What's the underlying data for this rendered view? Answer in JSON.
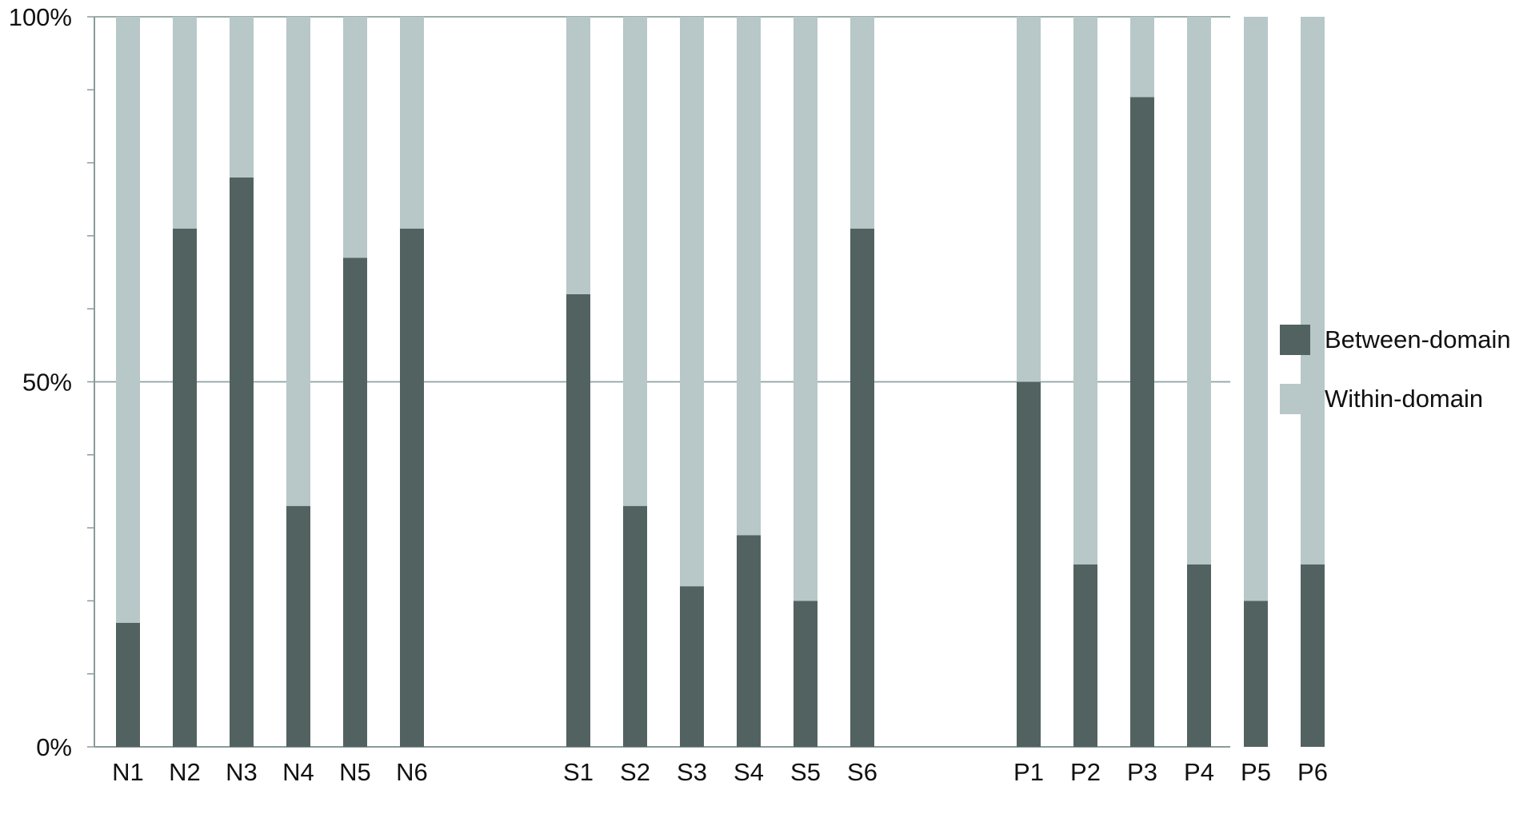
{
  "chart_data": {
    "type": "bar",
    "stacked": true,
    "percent": true,
    "categories": [
      "N1",
      "N2",
      "N3",
      "N4",
      "N5",
      "N6",
      "S1",
      "S2",
      "S3",
      "S4",
      "S5",
      "S6",
      "P1",
      "P2",
      "P3",
      "P4",
      "P5",
      "P6"
    ],
    "groups": [
      [
        "N1",
        "N2",
        "N3",
        "N4",
        "N5",
        "N6"
      ],
      [
        "S1",
        "S2",
        "S3",
        "S4",
        "S5",
        "S6"
      ],
      [
        "P1",
        "P2",
        "P3",
        "P4",
        "P5",
        "P6"
      ]
    ],
    "series": [
      {
        "name": "Between-domain",
        "color": "#526261",
        "values": [
          17,
          71,
          78,
          33,
          67,
          71,
          62,
          33,
          22,
          29,
          20,
          71,
          50,
          25,
          89,
          25,
          20,
          25
        ]
      },
      {
        "name": "Within-domain",
        "color": "#b8c7c7",
        "values": [
          83,
          29,
          22,
          67,
          33,
          29,
          38,
          67,
          78,
          71,
          80,
          29,
          50,
          75,
          11,
          75,
          80,
          75
        ]
      }
    ],
    "yticks": [
      {
        "value": 0,
        "label": "0%"
      },
      {
        "value": 50,
        "label": "50%"
      },
      {
        "value": 100,
        "label": "100%"
      }
    ],
    "ylim": [
      0,
      100
    ],
    "grid": true,
    "legend_position": "right",
    "title": "",
    "xlabel": "",
    "ylabel": ""
  }
}
